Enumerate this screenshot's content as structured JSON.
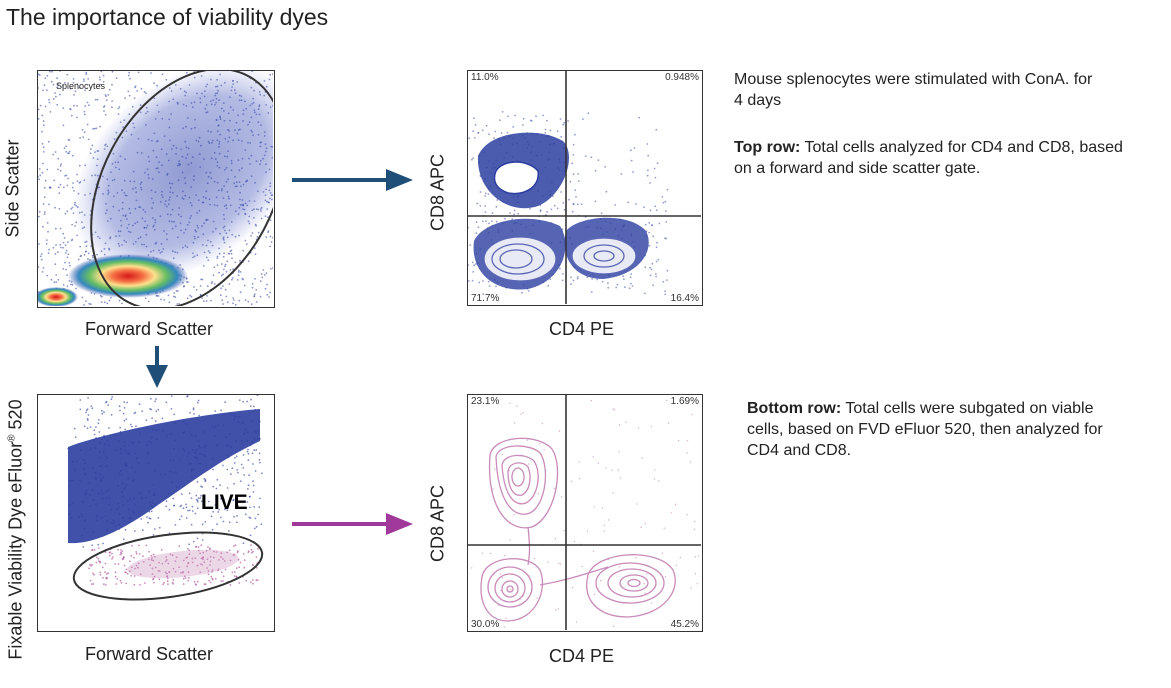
{
  "title": "The importance of viability dyes",
  "top_left": {
    "gate_label": "Splenocytes",
    "xlabel": "Forward Scatter",
    "ylabel": "Side Scatter"
  },
  "top_right": {
    "xlabel": "CD4 PE",
    "ylabel": "CD8 APC",
    "quadrants": {
      "ul": "11.0%",
      "ur": "0.948%",
      "ll": "71.7%",
      "lr": "16.4%"
    }
  },
  "bottom_left": {
    "gate_label": "LIVE",
    "xlabel": "Forward Scatter",
    "ylabel_main": "Fixable Viability Dye eFluor",
    "ylabel_sup": "®",
    "ylabel_end": " 520"
  },
  "bottom_right": {
    "xlabel": "CD4 PE",
    "ylabel": "CD8 APC",
    "quadrants": {
      "ul": "23.1%",
      "ur": "1.69%",
      "ll": "30.0%",
      "lr": "45.2%"
    }
  },
  "notes": {
    "intro": "Mouse splenocytes were stimulated with ConA. for 4 days",
    "top_bold": "Top row:",
    "top_text": " Total cells analyzed for CD4 and CD8, based on a forward and side scatter gate.",
    "bottom_bold": "Bottom row:",
    "bottom_text": " Total cells were subgated on viable cells, based on FVD eFluor 520, then analyzed for CD4 and CD8."
  },
  "colors": {
    "top_arrow": "#1f4e79",
    "bottom_arrow": "#a0399a",
    "dots_blue": "#2c3e9e",
    "dots_pink": "#b35c9c",
    "contour_pink": "#c98bb9"
  }
}
